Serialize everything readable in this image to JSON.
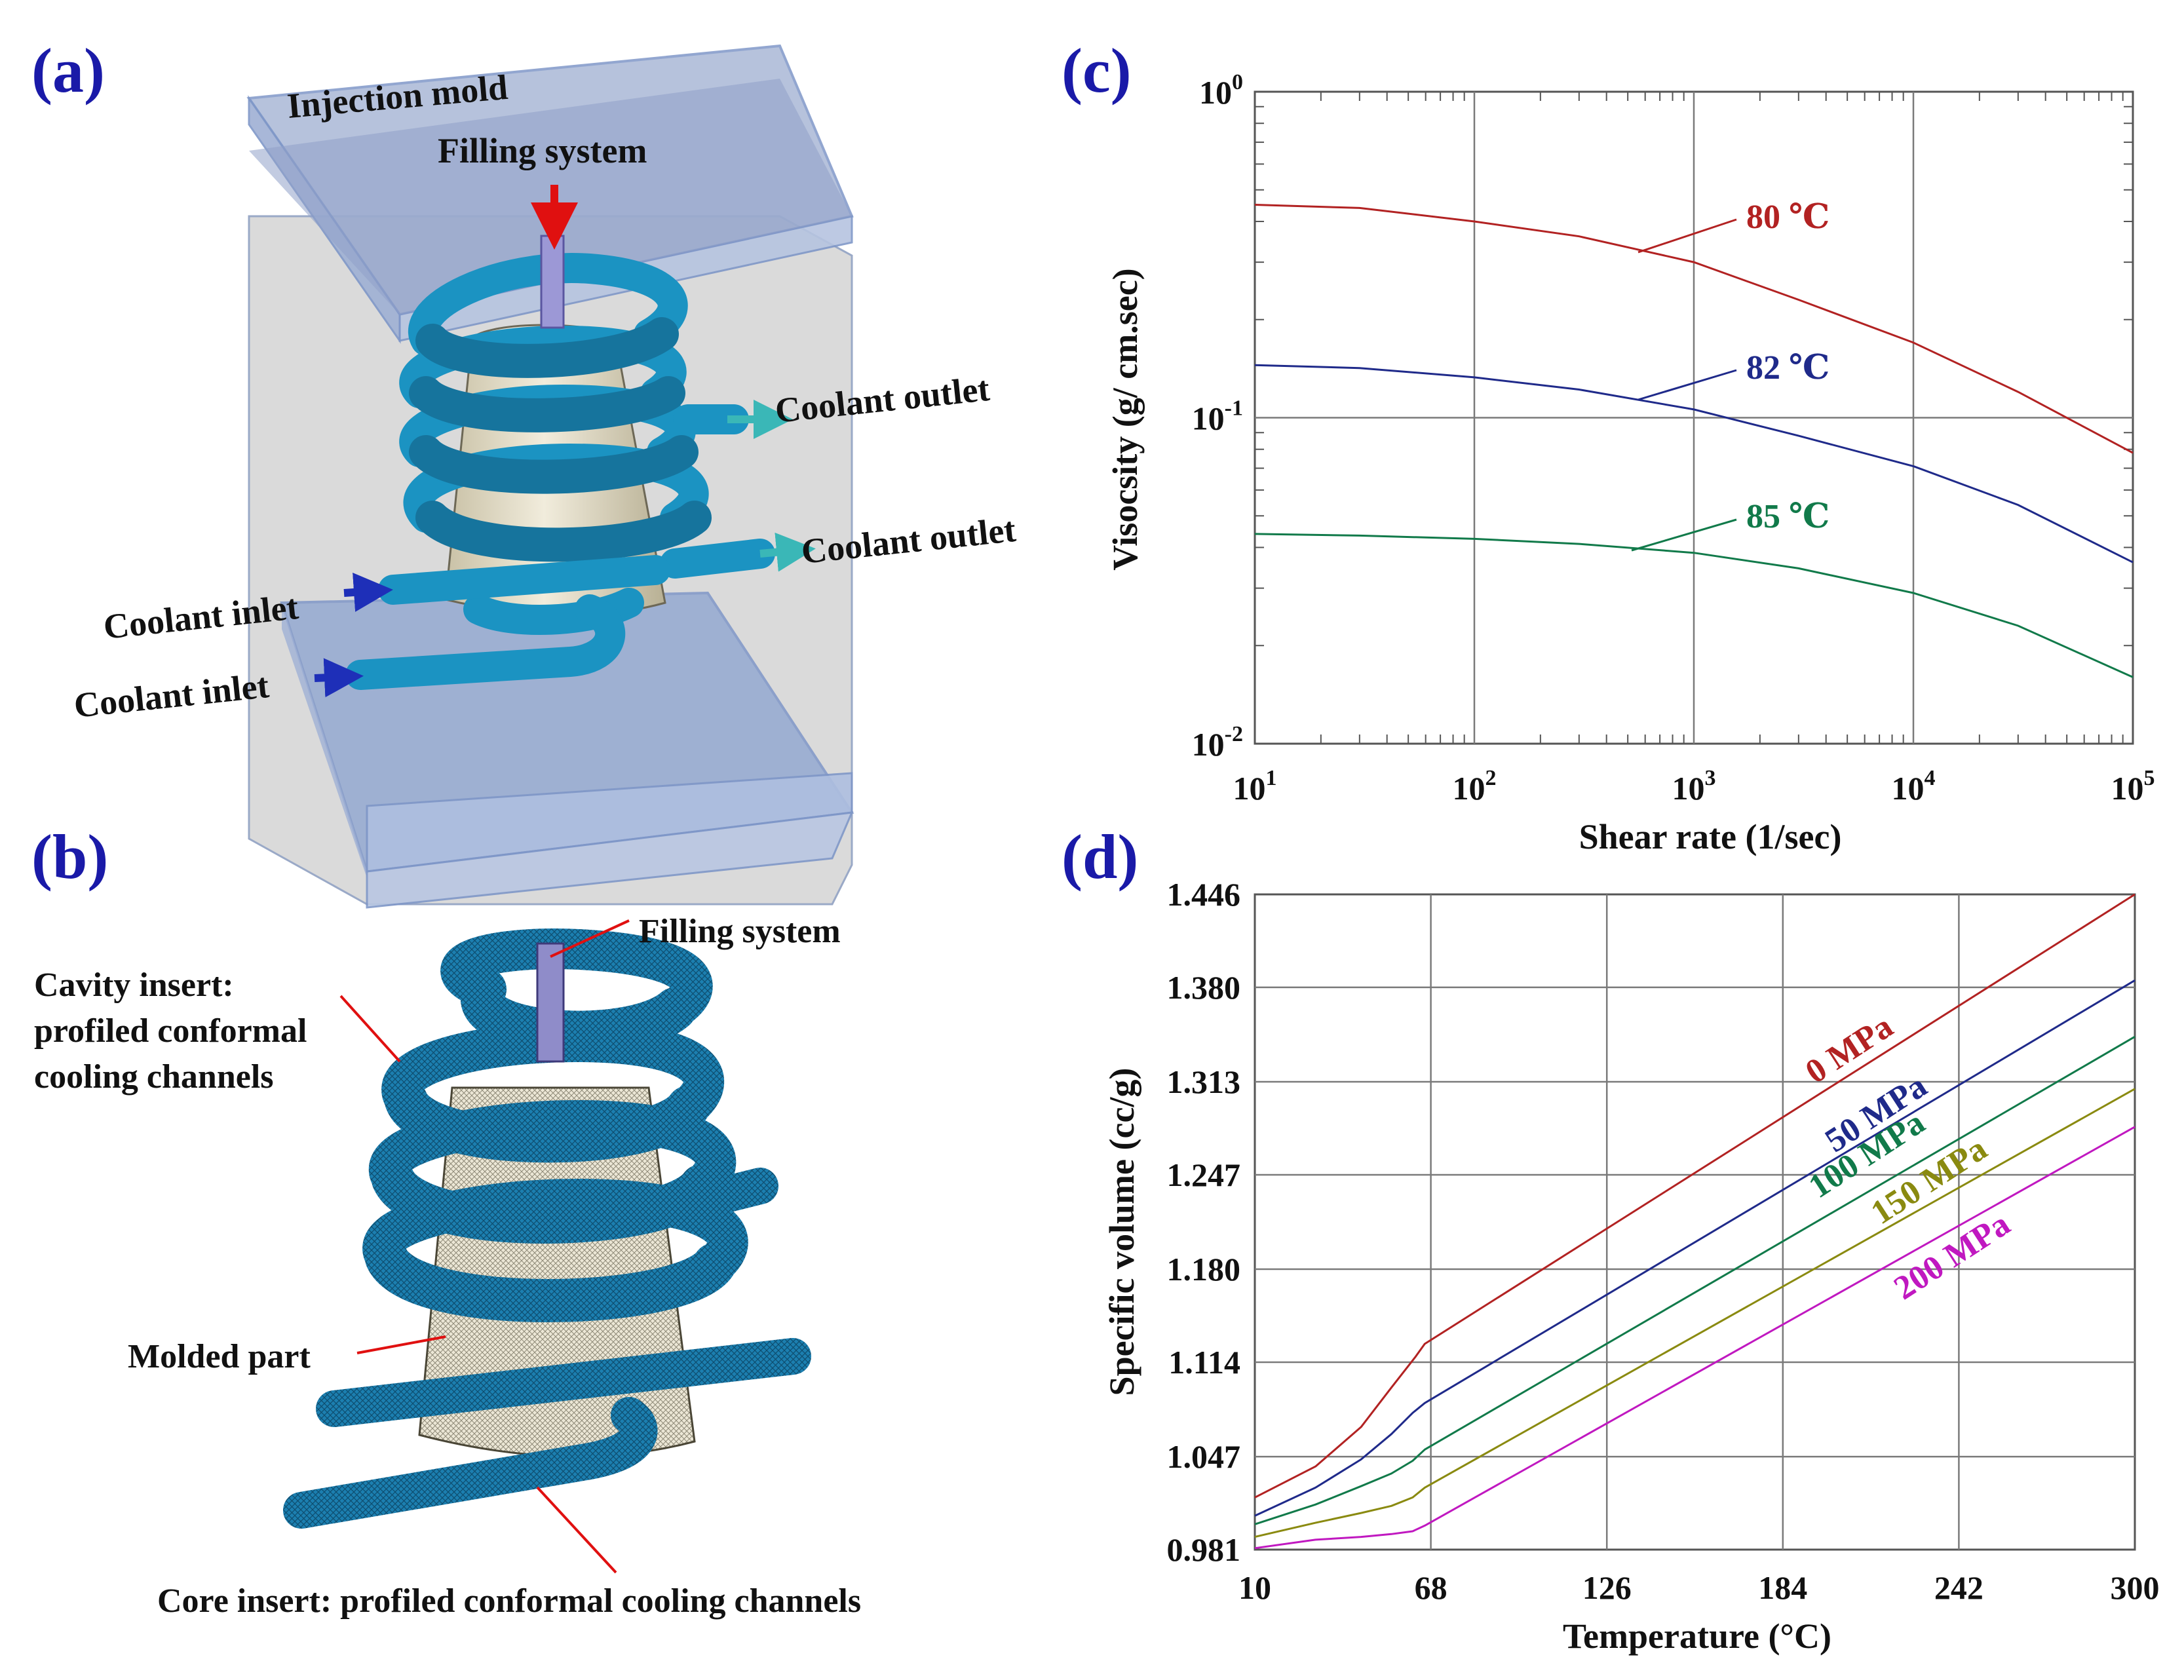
{
  "panels": {
    "a": {
      "letter": "(a)",
      "labels": {
        "injection_mold": "Injection mold",
        "filling_system": "Filling system",
        "coolant_outlet_1": "Coolant outlet",
        "coolant_outlet_2": "Coolant outlet",
        "coolant_inlet_1": "Coolant inlet",
        "coolant_inlet_2": "Coolant inlet"
      }
    },
    "b": {
      "letter": "(b)",
      "labels": {
        "filling_system": "Filling system",
        "cavity_line1": "Cavity insert:",
        "cavity_line2": "profiled conformal",
        "cavity_line3": "cooling channels",
        "molded_part": "Molded part",
        "core_insert": "Core insert: profiled conformal cooling channels"
      }
    },
    "c": {
      "letter": "(c)"
    },
    "d": {
      "letter": "(d)"
    }
  },
  "colors": {
    "panel_letter": "#1a1aa8",
    "pipe": "#1b93c2",
    "mold_plate": "#8ea6cf",
    "part": "#e8e2cf",
    "red": "#b22222",
    "navy": "#1f2a8a",
    "green": "#117a4a",
    "olive": "#8a8a10",
    "magenta": "#c018c0"
  },
  "chart_data": [
    {
      "panel": "(c)",
      "type": "line",
      "xscale": "log",
      "yscale": "log",
      "xlabel": "Shear rate (1/sec)",
      "ylabel": "Visocsity (g/ cm.sec)",
      "xlim": [
        10,
        100000
      ],
      "ylim": [
        0.01,
        1
      ],
      "x_ticks": [
        {
          "base": "10",
          "exp": "1"
        },
        {
          "base": "10",
          "exp": "2"
        },
        {
          "base": "10",
          "exp": "3"
        },
        {
          "base": "10",
          "exp": "4"
        },
        {
          "base": "10",
          "exp": "5"
        }
      ],
      "y_ticks": [
        {
          "base": "10",
          "exp": "-2",
          "value": 0.01
        },
        {
          "base": "10",
          "exp": "-1",
          "value": 0.1
        },
        {
          "base": "10",
          "exp": "0",
          "value": 1
        }
      ],
      "series": [
        {
          "name": "80 ℃",
          "color": "#b22222",
          "points": [
            [
              10,
              0.45
            ],
            [
              30,
              0.44
            ],
            [
              100,
              0.4
            ],
            [
              300,
              0.36
            ],
            [
              1000,
              0.3
            ],
            [
              3000,
              0.23
            ],
            [
              10000,
              0.17
            ],
            [
              30000,
              0.12
            ],
            [
              100000,
              0.078
            ]
          ]
        },
        {
          "name": "82 ℃",
          "color": "#1f2a8a",
          "points": [
            [
              10,
              0.145
            ],
            [
              30,
              0.142
            ],
            [
              100,
              0.133
            ],
            [
              300,
              0.122
            ],
            [
              1000,
              0.106
            ],
            [
              3000,
              0.088
            ],
            [
              10000,
              0.071
            ],
            [
              30000,
              0.054
            ],
            [
              100000,
              0.036
            ]
          ]
        },
        {
          "name": "85 ℃",
          "color": "#117a4a",
          "points": [
            [
              10,
              0.044
            ],
            [
              30,
              0.0435
            ],
            [
              100,
              0.0425
            ],
            [
              300,
              0.041
            ],
            [
              1000,
              0.0385
            ],
            [
              3000,
              0.0345
            ],
            [
              10000,
              0.029
            ],
            [
              30000,
              0.023
            ],
            [
              100000,
              0.016
            ]
          ]
        }
      ]
    },
    {
      "panel": "(d)",
      "type": "line",
      "xlabel": "Temperature (°C)",
      "ylabel": "Specific volume (cc/g)",
      "xlim": [
        10,
        300
      ],
      "ylim": [
        0.981,
        1.446
      ],
      "x_ticks": [
        "10",
        "68",
        "126",
        "184",
        "242",
        "300"
      ],
      "y_ticks": [
        "0.981",
        "1.047",
        "1.114",
        "1.180",
        "1.247",
        "1.313",
        "1.380",
        "1.446"
      ],
      "series": [
        {
          "name": "0 MPa",
          "color": "#b22222",
          "points": [
            [
              10,
              1.018
            ],
            [
              30,
              1.04
            ],
            [
              45,
              1.068
            ],
            [
              55,
              1.096
            ],
            [
              63,
              1.118
            ],
            [
              66,
              1.127
            ],
            [
              300,
              1.446
            ]
          ]
        },
        {
          "name": "50 MPa",
          "color": "#1f2a8a",
          "points": [
            [
              10,
              1.005
            ],
            [
              30,
              1.025
            ],
            [
              45,
              1.045
            ],
            [
              55,
              1.063
            ],
            [
              62,
              1.078
            ],
            [
              66,
              1.085
            ],
            [
              300,
              1.385
            ]
          ]
        },
        {
          "name": "100 MPa",
          "color": "#117a4a",
          "points": [
            [
              10,
              0.999
            ],
            [
              30,
              1.013
            ],
            [
              45,
              1.026
            ],
            [
              55,
              1.035
            ],
            [
              62,
              1.044
            ],
            [
              66,
              1.052
            ],
            [
              300,
              1.345
            ]
          ]
        },
        {
          "name": "150 MPa",
          "color": "#8a8a10",
          "points": [
            [
              10,
              0.99
            ],
            [
              30,
              1.0
            ],
            [
              45,
              1.007
            ],
            [
              55,
              1.012
            ],
            [
              62,
              1.018
            ],
            [
              66,
              1.025
            ],
            [
              300,
              1.308
            ]
          ]
        },
        {
          "name": "200 MPa",
          "color": "#c018c0",
          "points": [
            [
              10,
              0.982
            ],
            [
              30,
              0.988
            ],
            [
              45,
              0.99
            ],
            [
              55,
              0.992
            ],
            [
              62,
              0.994
            ],
            [
              66,
              0.998
            ],
            [
              300,
              1.281
            ]
          ]
        }
      ]
    }
  ]
}
